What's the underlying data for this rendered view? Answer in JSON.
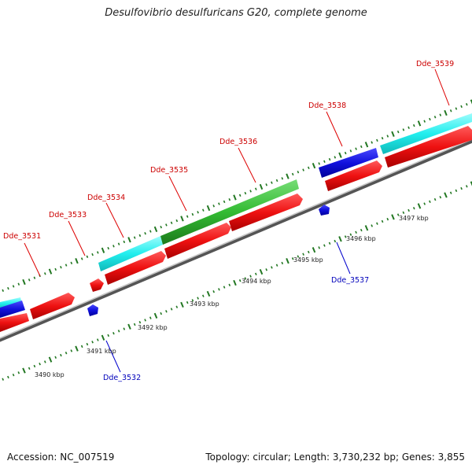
{
  "title": "Desulfovibrio desulfuricans G20, complete genome",
  "footer": {
    "accession": "Accession: NC_007519",
    "stats": "Topology: circular; Length: 3,730,232 bp; Genes: 3,855"
  },
  "colors": {
    "forward_cds": "#ee1111",
    "reverse_cds": "#1111dd",
    "cyan_feature": "#22eeee",
    "green_feature": "#33bb33",
    "label_forward": "#cc0000",
    "label_reverse": "#0000bb",
    "tick": "#227722",
    "backbone": "#888888"
  },
  "scale_labels": [
    "3490 kbp",
    "3491 kbp",
    "3492 kbp",
    "3493 kbp",
    "3494 kbp",
    "3495 kbp",
    "3496 kbp",
    "3497 kbp"
  ],
  "genes": [
    {
      "name": "Dde_3531",
      "strand": "forward"
    },
    {
      "name": "Dde_3532",
      "strand": "reverse"
    },
    {
      "name": "Dde_3533",
      "strand": "forward"
    },
    {
      "name": "Dde_3534",
      "strand": "forward"
    },
    {
      "name": "Dde_3535",
      "strand": "forward"
    },
    {
      "name": "Dde_3536",
      "strand": "forward"
    },
    {
      "name": "Dde_3537",
      "strand": "reverse"
    },
    {
      "name": "Dde_3538",
      "strand": "forward"
    },
    {
      "name": "Dde_3539",
      "strand": "forward"
    }
  ]
}
